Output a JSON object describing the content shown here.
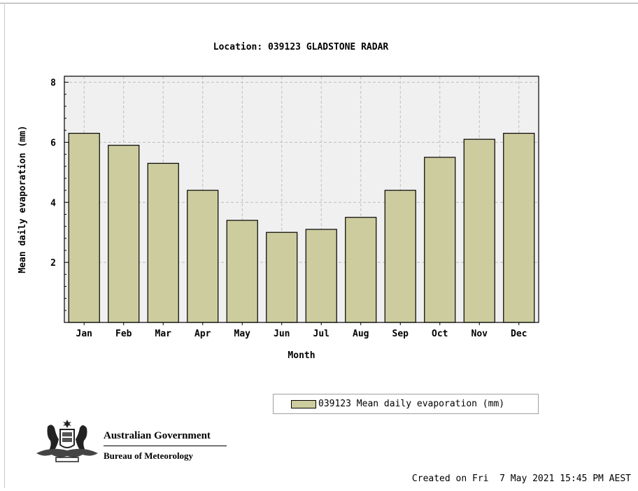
{
  "colors": {
    "bar_fill": "#cccc9e",
    "plot_bg": "#f0f0f0",
    "grid": "#bdbdbd"
  },
  "chart_data": {
    "type": "bar",
    "title": "Location: 039123 GLADSTONE RADAR",
    "xlabel": "Month",
    "ylabel": "Mean daily evaporation (mm)",
    "categories": [
      "Jan",
      "Feb",
      "Mar",
      "Apr",
      "May",
      "Jun",
      "Jul",
      "Aug",
      "Sep",
      "Oct",
      "Nov",
      "Dec"
    ],
    "series": [
      {
        "name": "039123 Mean daily evaporation (mm)",
        "values": [
          6.3,
          5.9,
          5.3,
          4.4,
          3.4,
          3.0,
          3.1,
          3.5,
          4.4,
          5.5,
          6.1,
          6.3
        ]
      }
    ],
    "ylim": [
      0,
      8.2
    ],
    "yticks": [
      2,
      4,
      6,
      8
    ],
    "grid": true,
    "legend_position": "bottom-right"
  },
  "branding": {
    "government": "Australian Government",
    "bureau": "Bureau of Meteorology",
    "logo_icon": "coat-of-arms-icon"
  },
  "footer": {
    "created": "Created on Fri  7 May 2021 15:45 PM AEST"
  }
}
